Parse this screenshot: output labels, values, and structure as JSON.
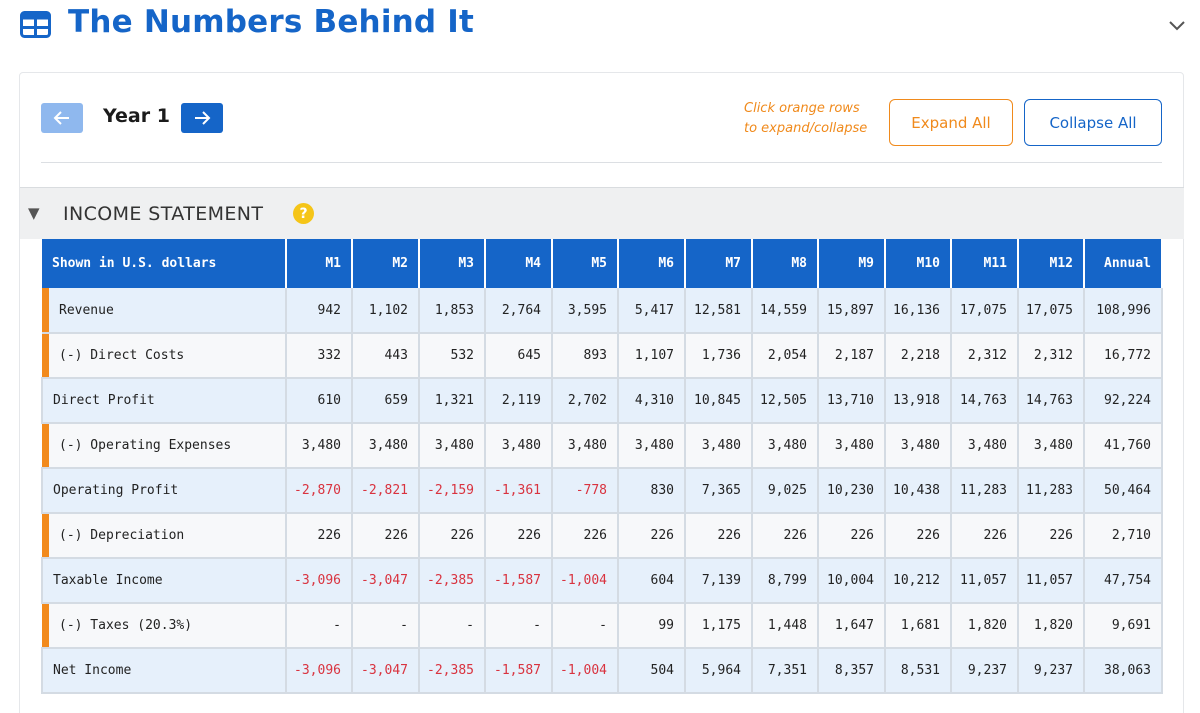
{
  "header": {
    "title": "The Numbers Behind It"
  },
  "nav": {
    "year_label": "Year 1"
  },
  "controls": {
    "hint_line1": "Click orange rows",
    "hint_line2": "to expand/collapse",
    "expand_label": "Expand All",
    "collapse_label": "Collapse All"
  },
  "section": {
    "title": "INCOME STATEMENT",
    "help": "?"
  },
  "table": {
    "columns": [
      "Shown in U.S. dollars",
      "M1",
      "M2",
      "M3",
      "M4",
      "M5",
      "M6",
      "M7",
      "M8",
      "M9",
      "M10",
      "M11",
      "M12",
      "Annual"
    ],
    "rows": [
      {
        "label": "Revenue",
        "kind": "revenue",
        "values": [
          "942",
          "1,102",
          "1,853",
          "2,764",
          "3,595",
          "5,417",
          "12,581",
          "14,559",
          "15,897",
          "16,136",
          "17,075",
          "17,075",
          "108,996"
        ]
      },
      {
        "label": "(-) Direct Costs",
        "kind": "detail",
        "values": [
          "332",
          "443",
          "532",
          "645",
          "893",
          "1,107",
          "1,736",
          "2,054",
          "2,187",
          "2,218",
          "2,312",
          "2,312",
          "16,772"
        ]
      },
      {
        "label": "Direct Profit",
        "kind": "total",
        "values": [
          "610",
          "659",
          "1,321",
          "2,119",
          "2,702",
          "4,310",
          "10,845",
          "12,505",
          "13,710",
          "13,918",
          "14,763",
          "14,763",
          "92,224"
        ]
      },
      {
        "label": "(-) Operating Expenses",
        "kind": "detail",
        "values": [
          "3,480",
          "3,480",
          "3,480",
          "3,480",
          "3,480",
          "3,480",
          "3,480",
          "3,480",
          "3,480",
          "3,480",
          "3,480",
          "3,480",
          "41,760"
        ]
      },
      {
        "label": "Operating Profit",
        "kind": "total",
        "values": [
          "-2,870",
          "-2,821",
          "-2,159",
          "-1,361",
          "-778",
          "830",
          "7,365",
          "9,025",
          "10,230",
          "10,438",
          "11,283",
          "11,283",
          "50,464"
        ]
      },
      {
        "label": "(-) Depreciation",
        "kind": "detail",
        "values": [
          "226",
          "226",
          "226",
          "226",
          "226",
          "226",
          "226",
          "226",
          "226",
          "226",
          "226",
          "226",
          "2,710"
        ]
      },
      {
        "label": "Taxable Income",
        "kind": "total",
        "values": [
          "-3,096",
          "-3,047",
          "-2,385",
          "-1,587",
          "-1,004",
          "604",
          "7,139",
          "8,799",
          "10,004",
          "10,212",
          "11,057",
          "11,057",
          "47,754"
        ]
      },
      {
        "label": "(-) Taxes (20.3%)",
        "kind": "detail",
        "values": [
          "-",
          "-",
          "-",
          "-",
          "-",
          "99",
          "1,175",
          "1,448",
          "1,647",
          "1,681",
          "1,820",
          "1,820",
          "9,691"
        ]
      },
      {
        "label": "Net Income",
        "kind": "total",
        "values": [
          "-3,096",
          "-3,047",
          "-2,385",
          "-1,587",
          "-1,004",
          "504",
          "5,964",
          "7,351",
          "8,357",
          "8,531",
          "9,237",
          "9,237",
          "38,063"
        ]
      }
    ]
  },
  "colors": {
    "brand_blue": "#1565c8",
    "accent_orange": "#f08a1c",
    "negative_red": "#d9333f",
    "help_yellow": "#f5c518"
  },
  "icons": {
    "title_icon": "table-grid-icon",
    "collapse_icon": "chevron-down-icon",
    "prev_icon": "arrow-left-icon",
    "next_icon": "arrow-right-icon",
    "section_toggle_icon": "triangle-down-icon",
    "help_icon": "question-icon"
  }
}
